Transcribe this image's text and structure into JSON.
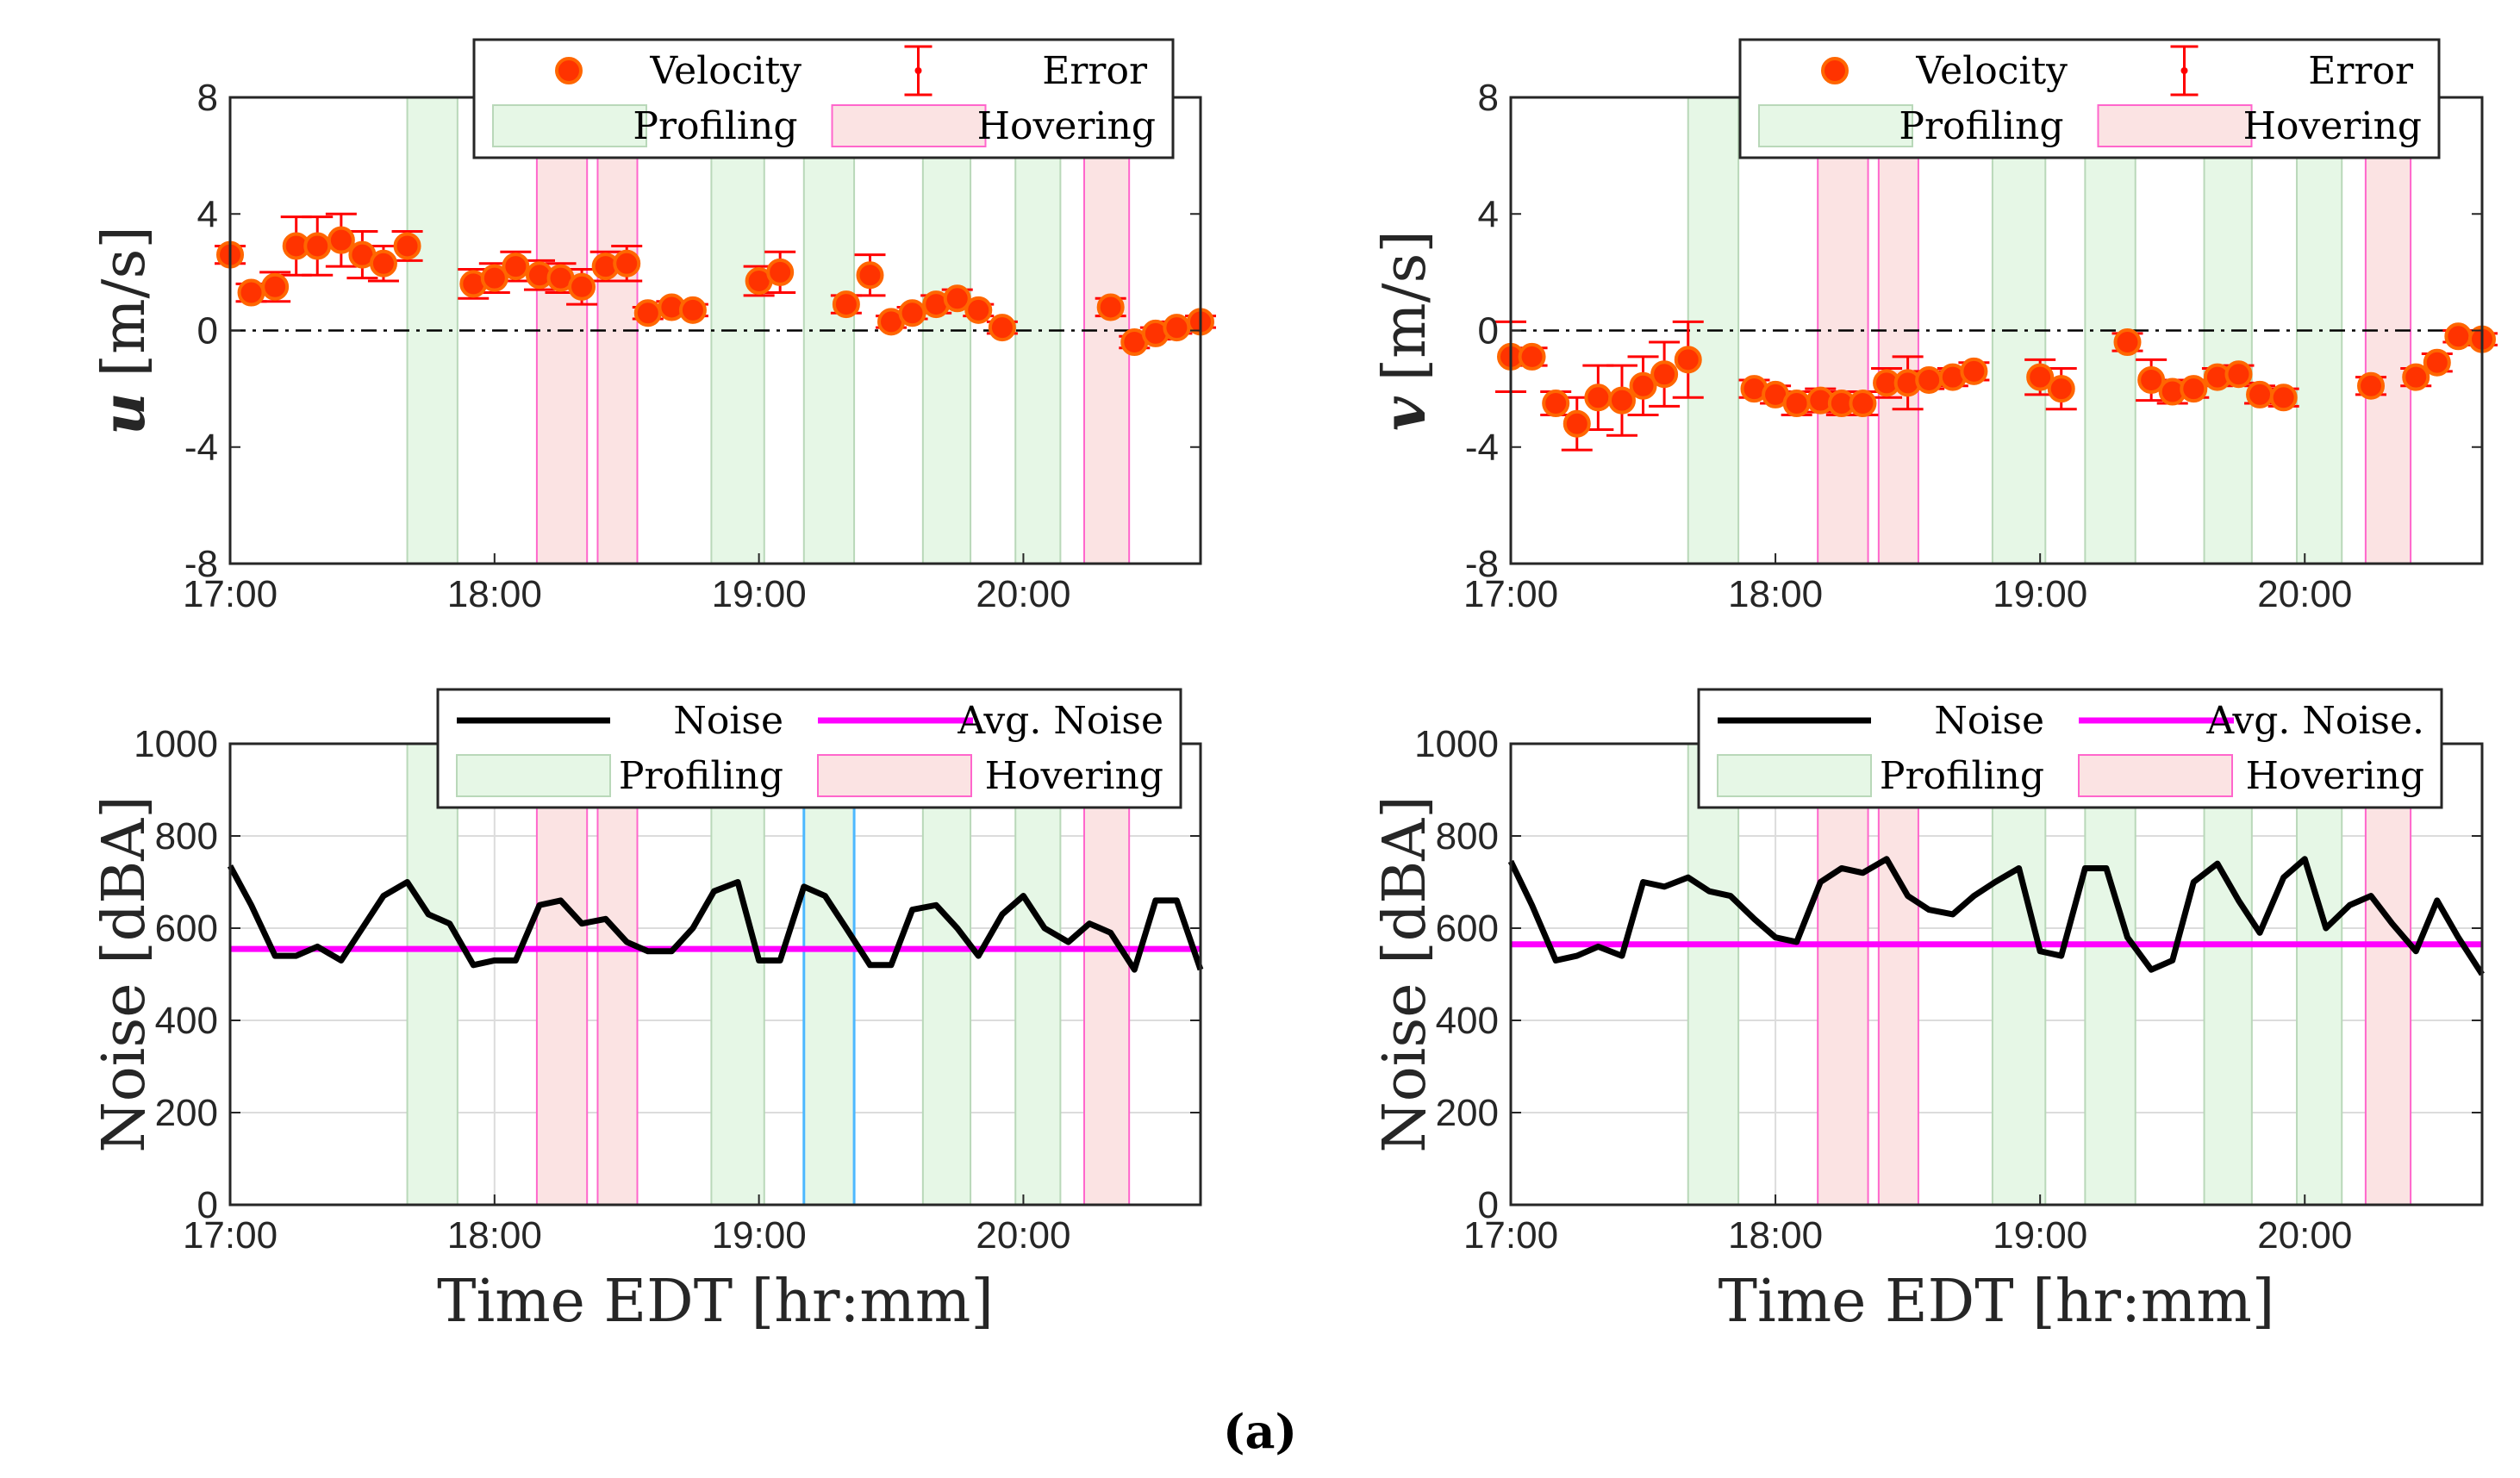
{
  "caption": "(a)",
  "colors": {
    "marker_fill": "#ff3300",
    "marker_edge": "#ff6600",
    "error": "#ff0000",
    "noise_line": "#000000",
    "avg_line": "#ff00ff",
    "profiling_fill": "#e6f7e6",
    "profiling_edge": "#b9d8b9",
    "hovering_fill": "#fbe3e3",
    "hovering_edge": "#ff66cc",
    "highlight_edge": "#4db8ff",
    "grid": "#dcdcdc",
    "zero_line": "#000000"
  },
  "chart_data": [
    {
      "id": "u",
      "type": "scatter",
      "ylabel_symbol": "u",
      "ylabel_unit": "[m/s]",
      "ylim": [
        -8,
        8
      ],
      "yticks": [
        "8",
        "4",
        "0",
        "-4",
        "-8"
      ],
      "ytick_values": [
        8,
        4,
        0,
        -4,
        -8
      ],
      "xlim_hours": [
        17.0,
        20.67
      ],
      "xticks": [
        "17:00",
        "18:00",
        "19:00",
        "20:00"
      ],
      "xtick_values": [
        17,
        18,
        19,
        20
      ],
      "xlabel": "",
      "legend": {
        "velocity": "Velocity",
        "error": "Error",
        "profiling": "Profiling",
        "hovering": "Hovering"
      },
      "profiling_intervals": [
        [
          17.67,
          17.86
        ],
        [
          18.82,
          19.02
        ],
        [
          19.17,
          19.36
        ],
        [
          19.62,
          19.8
        ],
        [
          19.97,
          20.14
        ]
      ],
      "hovering_intervals": [
        [
          18.16,
          18.35
        ],
        [
          18.39,
          18.54
        ],
        [
          20.23,
          20.4
        ]
      ],
      "points": [
        [
          17.0,
          2.6,
          0.3
        ],
        [
          17.08,
          1.3,
          0.3
        ],
        [
          17.17,
          1.5,
          0.5
        ],
        [
          17.25,
          2.9,
          1.0
        ],
        [
          17.33,
          2.9,
          1.0
        ],
        [
          17.42,
          3.1,
          0.9
        ],
        [
          17.5,
          2.6,
          0.8
        ],
        [
          17.58,
          2.3,
          0.6
        ],
        [
          17.67,
          2.9,
          0.5
        ],
        [
          17.92,
          1.6,
          0.5
        ],
        [
          18.0,
          1.8,
          0.5
        ],
        [
          18.08,
          2.2,
          0.5
        ],
        [
          18.17,
          1.9,
          0.5
        ],
        [
          18.25,
          1.8,
          0.5
        ],
        [
          18.33,
          1.5,
          0.6
        ],
        [
          18.42,
          2.2,
          0.5
        ],
        [
          18.5,
          2.3,
          0.6
        ],
        [
          18.58,
          0.6,
          0.2
        ],
        [
          18.67,
          0.8,
          0.2
        ],
        [
          18.75,
          0.7,
          0.2
        ],
        [
          19.0,
          1.7,
          0.5
        ],
        [
          19.08,
          2.0,
          0.7
        ],
        [
          19.33,
          0.9,
          0.3
        ],
        [
          19.42,
          1.9,
          0.7
        ],
        [
          19.5,
          0.3,
          0.2
        ],
        [
          19.58,
          0.6,
          0.2
        ],
        [
          19.67,
          0.9,
          0.3
        ],
        [
          19.75,
          1.1,
          0.3
        ],
        [
          19.83,
          0.7,
          0.2
        ],
        [
          19.92,
          0.1,
          0.2
        ],
        [
          20.33,
          0.8,
          0.3
        ],
        [
          20.42,
          -0.4,
          0.2
        ],
        [
          20.5,
          -0.1,
          0.2
        ],
        [
          20.58,
          0.1,
          0.2
        ],
        [
          20.67,
          0.3,
          0.2
        ]
      ]
    },
    {
      "id": "v",
      "type": "scatter",
      "ylabel_symbol": "v",
      "ylabel_unit": "[m/s]",
      "ylim": [
        -8,
        8
      ],
      "yticks": [
        "8",
        "4",
        "0",
        "-4",
        "-8"
      ],
      "ytick_values": [
        8,
        4,
        0,
        -4,
        -8
      ],
      "xlim_hours": [
        17.0,
        20.67
      ],
      "xticks": [
        "17:00",
        "18:00",
        "19:00",
        "20:00"
      ],
      "xtick_values": [
        17,
        18,
        19,
        20
      ],
      "xlabel": "",
      "legend": {
        "velocity": "Velocity",
        "error": "Error",
        "profiling": "Profiling",
        "hovering": "Hovering"
      },
      "profiling_intervals": [
        [
          17.67,
          17.86
        ],
        [
          18.82,
          19.02
        ],
        [
          19.17,
          19.36
        ],
        [
          19.62,
          19.8
        ],
        [
          19.97,
          20.14
        ]
      ],
      "hovering_intervals": [
        [
          18.16,
          18.35
        ],
        [
          18.39,
          18.54
        ],
        [
          20.23,
          20.4
        ]
      ],
      "points": [
        [
          17.0,
          -0.9,
          1.2
        ],
        [
          17.08,
          -0.9,
          0.3
        ],
        [
          17.17,
          -2.5,
          0.4
        ],
        [
          17.25,
          -3.2,
          0.9
        ],
        [
          17.33,
          -2.3,
          1.1
        ],
        [
          17.42,
          -2.4,
          1.2
        ],
        [
          17.5,
          -1.9,
          1.0
        ],
        [
          17.58,
          -1.5,
          1.1
        ],
        [
          17.67,
          -1.0,
          1.3
        ],
        [
          17.92,
          -2.0,
          0.3
        ],
        [
          18.0,
          -2.2,
          0.3
        ],
        [
          18.08,
          -2.5,
          0.4
        ],
        [
          18.17,
          -2.4,
          0.4
        ],
        [
          18.25,
          -2.5,
          0.4
        ],
        [
          18.33,
          -2.5,
          0.4
        ],
        [
          18.42,
          -1.8,
          0.5
        ],
        [
          18.5,
          -1.8,
          0.9
        ],
        [
          18.58,
          -1.7,
          0.3
        ],
        [
          18.67,
          -1.6,
          0.3
        ],
        [
          18.75,
          -1.4,
          0.3
        ],
        [
          19.0,
          -1.6,
          0.6
        ],
        [
          19.08,
          -2.0,
          0.7
        ],
        [
          19.33,
          -0.4,
          0.3
        ],
        [
          19.42,
          -1.7,
          0.7
        ],
        [
          19.5,
          -2.1,
          0.4
        ],
        [
          19.58,
          -2.0,
          0.3
        ],
        [
          19.67,
          -1.6,
          0.3
        ],
        [
          19.75,
          -1.5,
          0.3
        ],
        [
          19.83,
          -2.2,
          0.3
        ],
        [
          19.92,
          -2.3,
          0.3
        ],
        [
          20.25,
          -1.9,
          0.3
        ],
        [
          20.42,
          -1.6,
          0.3
        ],
        [
          20.5,
          -1.1,
          0.3
        ],
        [
          20.58,
          -0.2,
          0.2
        ],
        [
          20.67,
          -0.3,
          0.2
        ]
      ]
    },
    {
      "id": "noise-left",
      "type": "line",
      "ylabel": "Noise [dBA]",
      "xlabel": "Time EDT [hr:mm]",
      "ylim": [
        0,
        1000
      ],
      "yticks": [
        "1000",
        "800",
        "600",
        "400",
        "200",
        "0"
      ],
      "ytick_values": [
        1000,
        800,
        600,
        400,
        200,
        0
      ],
      "xlim_hours": [
        17.0,
        20.67
      ],
      "xticks": [
        "17:00",
        "18:00",
        "19:00",
        "20:00"
      ],
      "xtick_values": [
        17,
        18,
        19,
        20
      ],
      "legend": {
        "noise": "Noise",
        "avg": "Avg. Noise",
        "profiling": "Profiling",
        "hovering": "Hovering"
      },
      "average": 555,
      "profiling_intervals": [
        [
          17.67,
          17.86
        ],
        [
          18.82,
          19.02
        ],
        [
          19.17,
          19.36
        ],
        [
          19.62,
          19.8
        ],
        [
          19.97,
          20.14
        ]
      ],
      "highlight_interval": [
        19.17,
        19.36
      ],
      "hovering_intervals": [
        [
          18.16,
          18.35
        ],
        [
          18.39,
          18.54
        ],
        [
          20.23,
          20.4
        ]
      ],
      "x": [
        17.0,
        17.08,
        17.17,
        17.25,
        17.33,
        17.42,
        17.5,
        17.58,
        17.67,
        17.75,
        17.83,
        17.92,
        18.0,
        18.08,
        18.17,
        18.25,
        18.33,
        18.42,
        18.5,
        18.58,
        18.67,
        18.75,
        18.83,
        18.92,
        19.0,
        19.08,
        19.17,
        19.25,
        19.33,
        19.42,
        19.5,
        19.58,
        19.67,
        19.75,
        19.83,
        19.92,
        20.0,
        20.08,
        20.17,
        20.25,
        20.33,
        20.42,
        20.5,
        20.58,
        20.67
      ],
      "values": [
        735,
        650,
        540,
        540,
        560,
        530,
        600,
        670,
        700,
        630,
        610,
        520,
        530,
        530,
        650,
        660,
        610,
        620,
        570,
        550,
        550,
        600,
        680,
        700,
        530,
        530,
        690,
        670,
        600,
        520,
        520,
        640,
        650,
        600,
        540,
        630,
        670,
        600,
        570,
        610,
        590,
        510,
        660,
        660,
        510
      ]
    },
    {
      "id": "noise-right",
      "type": "line",
      "ylabel": "Noise [dBA]",
      "xlabel": "Time EDT [hr:mm]",
      "ylim": [
        0,
        1000
      ],
      "yticks": [
        "1000",
        "800",
        "600",
        "400",
        "200",
        "0"
      ],
      "ytick_values": [
        1000,
        800,
        600,
        400,
        200,
        0
      ],
      "xlim_hours": [
        17.0,
        20.67
      ],
      "xticks": [
        "17:00",
        "18:00",
        "19:00",
        "20:00"
      ],
      "xtick_values": [
        17,
        18,
        19,
        20
      ],
      "legend": {
        "noise": "Noise",
        "avg": "Avg. Noise.",
        "profiling": "Profiling",
        "hovering": "Hovering"
      },
      "average": 565,
      "profiling_intervals": [
        [
          17.67,
          17.86
        ],
        [
          18.82,
          19.02
        ],
        [
          19.17,
          19.36
        ],
        [
          19.62,
          19.8
        ],
        [
          19.97,
          20.14
        ]
      ],
      "hovering_intervals": [
        [
          18.16,
          18.35
        ],
        [
          18.39,
          18.54
        ],
        [
          20.23,
          20.4
        ]
      ],
      "x": [
        17.0,
        17.08,
        17.17,
        17.25,
        17.33,
        17.42,
        17.5,
        17.58,
        17.67,
        17.75,
        17.83,
        17.92,
        18.0,
        18.08,
        18.17,
        18.25,
        18.33,
        18.42,
        18.5,
        18.58,
        18.67,
        18.75,
        18.83,
        18.92,
        19.0,
        19.08,
        19.17,
        19.25,
        19.33,
        19.42,
        19.5,
        19.58,
        19.67,
        19.75,
        19.83,
        19.92,
        20.0,
        20.08,
        20.17,
        20.25,
        20.33,
        20.42,
        20.5,
        20.58,
        20.67
      ],
      "values": [
        745,
        650,
        530,
        540,
        560,
        540,
        700,
        690,
        710,
        680,
        670,
        620,
        580,
        570,
        700,
        730,
        720,
        750,
        670,
        640,
        630,
        670,
        700,
        730,
        550,
        540,
        730,
        730,
        580,
        510,
        530,
        700,
        740,
        660,
        590,
        710,
        750,
        600,
        650,
        670,
        610,
        550,
        660,
        580,
        500
      ]
    }
  ]
}
